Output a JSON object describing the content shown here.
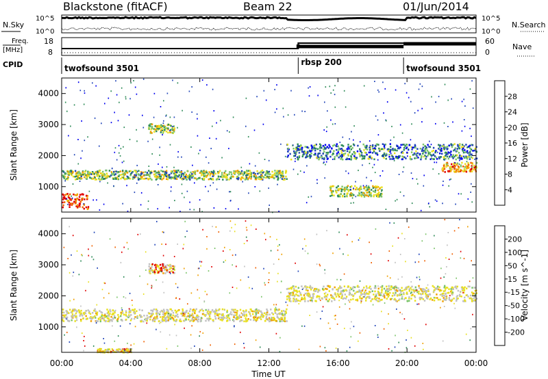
{
  "header": {
    "title": "Blackstone (fitACF)",
    "beam": "Beam 22",
    "date": "01/Jun/2014"
  },
  "status": {
    "nsky_label": "N.Sky",
    "nsearch_label": "N.Search",
    "noise_ticks": [
      "10^5",
      "10^0"
    ],
    "freq_label": "Freq.",
    "freq_unit": "[MHz]",
    "freq_ticks": [
      "18",
      "8"
    ],
    "nave_label": "Nave",
    "nave_ticks": [
      "60",
      "0"
    ],
    "cpid_label": "CPID",
    "cpid_segments": [
      {
        "name": "twofsound 3501",
        "start_h": 0,
        "end_h": 13.7
      },
      {
        "name": "rbsp 200",
        "start_h": 13.7,
        "end_h": 19.8
      },
      {
        "name": "twofsound 3501",
        "start_h": 19.8,
        "end_h": 24
      }
    ]
  },
  "colors": {
    "power": [
      "#0000f0",
      "#2044b8",
      "#2e8b57",
      "#7cc46a",
      "#e8e020",
      "#f0a000",
      "#f06000",
      "#e00000"
    ],
    "velocity": [
      "#e00000",
      "#f06000",
      "#f0a000",
      "#e8e020",
      "#c0c0c0",
      "#7cc46a",
      "#2e8b57",
      "#2044b8"
    ]
  },
  "chart_data": [
    {
      "type": "heatmap",
      "name": "power",
      "ylabel": "Slant Range [km]",
      "xlim": [
        0,
        24
      ],
      "ylim": [
        180,
        4500
      ],
      "yticks": [
        1000,
        2000,
        3000,
        4000
      ],
      "colorbar": {
        "label": "Power [dB]",
        "ticks": [
          "4",
          "8",
          "12",
          "16",
          "20",
          "24",
          "28"
        ],
        "range": [
          0,
          30
        ]
      },
      "regions": [
        {
          "t0": 0,
          "t1": 13,
          "r0": 1250,
          "r1": 1550,
          "level": 0.45
        },
        {
          "t0": 0,
          "t1": 1.5,
          "r0": 300,
          "r1": 800,
          "level": 0.85
        },
        {
          "t0": 5,
          "t1": 6.5,
          "r0": 2750,
          "r1": 3050,
          "level": 0.5
        },
        {
          "t0": 13,
          "t1": 24,
          "r0": 1900,
          "r1": 2400,
          "level": 0.3
        },
        {
          "t0": 15.5,
          "t1": 18.5,
          "r0": 700,
          "r1": 1050,
          "level": 0.5
        },
        {
          "t0": 22,
          "t1": 24,
          "r0": 1500,
          "r1": 1800,
          "level": 0.7
        }
      ]
    },
    {
      "type": "heatmap",
      "name": "velocity",
      "ylabel": "Slant Range [km]",
      "xlabel": "Time UT",
      "xticks": [
        "00:00",
        "04:00",
        "08:00",
        "12:00",
        "16:00",
        "20:00",
        "00:00"
      ],
      "xlim": [
        0,
        24
      ],
      "ylim": [
        180,
        4500
      ],
      "yticks": [
        1000,
        2000,
        3000,
        4000
      ],
      "colorbar": {
        "label": "Velocity [m s^-1]",
        "ticks": [
          "-200",
          "-100",
          "-50",
          "-15",
          "15",
          "50",
          "100",
          "200"
        ],
        "range": [
          -250,
          250
        ]
      },
      "regions": [
        {
          "t0": 0,
          "t1": 13,
          "r0": 1200,
          "r1": 1600,
          "level": 0.5
        },
        {
          "t0": 13,
          "t1": 24,
          "r0": 1850,
          "r1": 2350,
          "level": 0.5
        },
        {
          "t0": 5,
          "t1": 6.5,
          "r0": 2750,
          "r1": 3050,
          "level": 0.1
        },
        {
          "t0": 2,
          "t1": 4,
          "r0": 200,
          "r1": 320,
          "level": 0.25
        }
      ]
    }
  ]
}
